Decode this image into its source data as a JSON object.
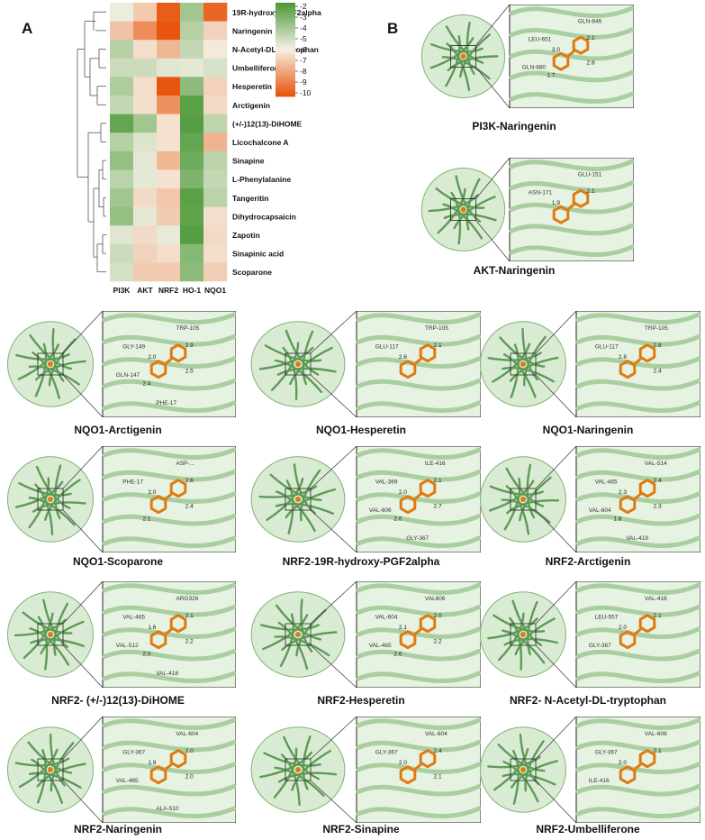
{
  "panel_a_label": "A",
  "panel_b_label": "B",
  "chart_data": {
    "type": "heatmap",
    "columns": [
      "PI3K",
      "AKT",
      "NRF2",
      "HO-1",
      "NQO1"
    ],
    "rows": [
      "19R-hydroxy-PGF2alpha",
      "Naringenin",
      "N-Acetyl-DL-tryptophan",
      "Umbelliferone",
      "Hesperetin",
      "Arctigenin",
      "(+/-)12(13)-DiHOME",
      "Licochalcone A",
      "Sinapine",
      "L-Phenylalanine",
      "Tangeritin",
      "Dihydrocapsaicin",
      "Zapotin",
      "Sinapinic acid",
      "Scoparone"
    ],
    "values": [
      [
        -5.8,
        -7.0,
        -9.8,
        -4.0,
        -9.6
      ],
      [
        -7.2,
        -8.6,
        -10.0,
        -4.5,
        -6.8
      ],
      [
        -4.5,
        -6.5,
        -7.5,
        -4.8,
        -6.2
      ],
      [
        -5.0,
        -5.0,
        -5.5,
        -5.6,
        -5.3
      ],
      [
        -4.3,
        -6.5,
        -10.0,
        -3.5,
        -6.8
      ],
      [
        -4.8,
        -6.5,
        -8.5,
        -2.3,
        -6.6
      ],
      [
        -2.5,
        -4.0,
        -6.4,
        -2.2,
        -4.7
      ],
      [
        -4.5,
        -5.4,
        -6.4,
        -2.5,
        -7.6
      ],
      [
        -3.7,
        -5.6,
        -7.5,
        -2.8,
        -4.6
      ],
      [
        -4.6,
        -5.6,
        -6.4,
        -3.2,
        -4.8
      ],
      [
        -4.0,
        -6.6,
        -7.1,
        -2.3,
        -4.6
      ],
      [
        -3.7,
        -5.6,
        -7.0,
        -2.4,
        -6.5
      ],
      [
        -5.5,
        -6.6,
        -5.7,
        -2.2,
        -6.6
      ],
      [
        -5.0,
        -6.8,
        -6.5,
        -3.4,
        -6.5
      ],
      [
        -5.2,
        -7.0,
        -7.0,
        -3.5,
        -6.9
      ]
    ],
    "colorbar_ticks": [
      "-2",
      "-3",
      "-4",
      "-5",
      "-6",
      "-7",
      "-8",
      "-9",
      "-10"
    ],
    "color_range": [
      -2,
      -10
    ],
    "colors": {
      "low": "#4e9a3a",
      "mid": "#f5f1e6",
      "high": "#e8550f"
    },
    "legend_position": "top-right"
  },
  "panels": [
    {
      "caption": "PI3K-Naringenin",
      "residues": [
        "GLN-846",
        "LEU-651",
        "GLN-880"
      ],
      "distances": [
        "2.1",
        "3.0",
        "2.8",
        "1.7"
      ]
    },
    {
      "caption": "AKT-Naringenin",
      "residues": [
        "GLU-151",
        "ASN-171"
      ],
      "distances": [
        "2.1",
        "1.9"
      ]
    },
    {
      "caption": "NQO1-Arctigenin",
      "residues": [
        "TRP-105",
        "GLY-149",
        "GLN-147",
        "PHE-17"
      ],
      "distances": [
        "2.9",
        "2.0",
        "2.5",
        "2.4"
      ]
    },
    {
      "caption": "NQO1-Hesperetin",
      "residues": [
        "TRP-105",
        "GLU-117"
      ],
      "distances": [
        "2.1",
        "2.6"
      ]
    },
    {
      "caption": "NQO1-Naringenin",
      "residues": [
        "TRP-105",
        "GLU-117"
      ],
      "distances": [
        "2.8",
        "2.8",
        "2.4"
      ]
    },
    {
      "caption": "NQO1-Scoparone",
      "residues": [
        "ASP-...",
        "PHE-17"
      ],
      "distances": [
        "2.6",
        "2.0",
        "2.4",
        "2.1"
      ]
    },
    {
      "caption": "NRF2-19R-hydroxy-PGF2alpha",
      "residues": [
        "ILE-416",
        "VAL-369",
        "VAL-606",
        "GLY-367"
      ],
      "distances": [
        "2.1",
        "2.0",
        "2.7",
        "2.0"
      ]
    },
    {
      "caption": "NRF2-Arctigenin",
      "residues": [
        "VAL-514",
        "VAL-465",
        "VAL-604",
        "VAL-418"
      ],
      "distances": [
        "2.4",
        "2.3",
        "2.3",
        "1.8"
      ]
    },
    {
      "caption": "NRF2- (+/-)12(13)-DiHOME",
      "residues": [
        "ARG326",
        "VAL-465",
        "VAL-512",
        "VAL-418"
      ],
      "distances": [
        "2.1",
        "1.6",
        "2.2",
        "2.0"
      ]
    },
    {
      "caption": "NRF2-Hesperetin",
      "residues": [
        "VAL606",
        "VAL-604",
        "VAL-465"
      ],
      "distances": [
        "2.0",
        "2.1",
        "2.2",
        "2.6"
      ]
    },
    {
      "caption": "NRF2- N-Acetyl-DL-tryptophan",
      "residues": [
        "VAL-418",
        "LEU-557",
        "GLY-367"
      ],
      "distances": [
        "2.1",
        "2.0"
      ]
    },
    {
      "caption": "NRF2-Naringenin",
      "residues": [
        "VAL-604",
        "GLY-367",
        "VAL-465",
        "ALA-510"
      ],
      "distances": [
        "2.0",
        "1.9",
        "2.0"
      ]
    },
    {
      "caption": "NRF2-Sinapine",
      "residues": [
        "VAL-604",
        "GLY-367"
      ],
      "distances": [
        "2.4",
        "2.0",
        "2.1"
      ]
    },
    {
      "caption": "NRF2-Umbelliferone",
      "residues": [
        "VAL-606",
        "GLY-367",
        "ILE-416"
      ],
      "distances": [
        "2.1",
        "2.0"
      ]
    }
  ]
}
